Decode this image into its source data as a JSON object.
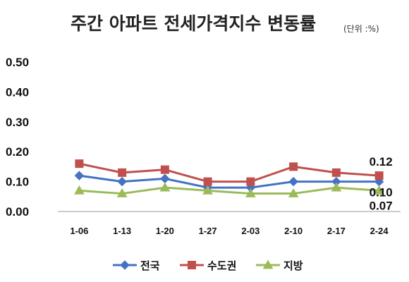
{
  "chart_data": {
    "type": "line",
    "title": "주간 아파트 전세가격지수 변동률",
    "unit_note": "(단위 :%)",
    "categories": [
      "1-06",
      "1-13",
      "1-20",
      "1-27",
      "2-03",
      "2-10",
      "2-17",
      "2-24"
    ],
    "y_ticks": [
      "0.00",
      "0.10",
      "0.20",
      "0.30",
      "0.40",
      "0.50"
    ],
    "ylim": [
      0,
      0.5
    ],
    "grid": false,
    "legend_position": "bottom",
    "series": [
      {
        "name": "전국",
        "color": "#4472C4",
        "marker": "diamond",
        "values": [
          0.12,
          0.1,
          0.11,
          0.08,
          0.08,
          0.1,
          0.1,
          0.1
        ]
      },
      {
        "name": "수도권",
        "color": "#C0504D",
        "marker": "square",
        "values": [
          0.16,
          0.13,
          0.14,
          0.1,
          0.1,
          0.15,
          0.13,
          0.12
        ]
      },
      {
        "name": "지방",
        "color": "#9BBB59",
        "marker": "triangle",
        "values": [
          0.07,
          0.06,
          0.08,
          0.07,
          0.06,
          0.06,
          0.08,
          0.07
        ]
      }
    ],
    "end_labels": [
      {
        "series": 1,
        "text": "0.12"
      },
      {
        "series": 0,
        "text": "0.10"
      },
      {
        "series": 2,
        "text": "0.07"
      }
    ]
  }
}
